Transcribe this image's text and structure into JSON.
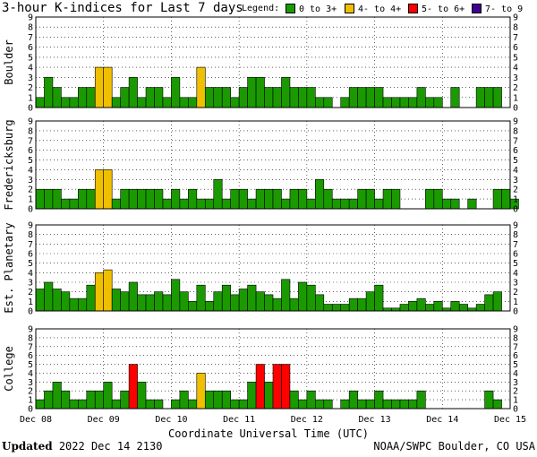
{
  "title": "3-hour K-indices for Last 7 days",
  "legend": {
    "label": "Legend:",
    "items": [
      {
        "label": "0 to 3+",
        "color": "#1a9a00"
      },
      {
        "label": "4- to 4+",
        "color": "#f0c000"
      },
      {
        "label": "5- to 6+",
        "color": "#ff0000"
      },
      {
        "label": "7- to 9",
        "color": "#400090"
      }
    ]
  },
  "footer": {
    "updated_label": "Updated",
    "updated_value": "2022 Dec 14 2130",
    "source": "NOAA/SWPC Boulder, CO USA"
  },
  "chart_data": {
    "type": "bar",
    "xlabel": "Coordinate Universal Time (UTC)",
    "x_ticks": [
      "Dec 08",
      "Dec 09",
      "Dec 10",
      "Dec 11",
      "Dec 12",
      "Dec 13",
      "Dec 14",
      "Dec 15"
    ],
    "y_ticks": [
      "0",
      "1",
      "2",
      "3",
      "4",
      "5",
      "6",
      "7",
      "8",
      "9"
    ],
    "ylim": [
      0,
      9
    ],
    "grid": true,
    "series": [
      {
        "name": "Boulder",
        "values": [
          1,
          3,
          2,
          1,
          1,
          2,
          2,
          4,
          4,
          1,
          2,
          3,
          1,
          2,
          2,
          1,
          3,
          1,
          1,
          4,
          2,
          2,
          2,
          1,
          2,
          3,
          3,
          2,
          2,
          3,
          2,
          2,
          2,
          1,
          1,
          0,
          1,
          2,
          2,
          2,
          2,
          1,
          1,
          1,
          1,
          2,
          1,
          1,
          0,
          2,
          0,
          0,
          2,
          2,
          2,
          0
        ]
      },
      {
        "name": "Fredericksburg",
        "values": [
          2,
          2,
          2,
          1,
          1,
          2,
          2,
          4,
          4,
          1,
          2,
          2,
          2,
          2,
          2,
          1,
          2,
          1,
          2,
          1,
          1,
          3,
          1,
          2,
          2,
          1,
          2,
          2,
          2,
          1,
          2,
          2,
          1,
          3,
          2,
          1,
          1,
          1,
          2,
          2,
          1,
          2,
          2,
          0,
          0,
          0,
          2,
          2,
          1,
          1,
          0,
          1,
          0,
          0,
          2,
          2,
          1,
          0
        ]
      },
      {
        "name": "Est. Planetary",
        "values": [
          2.3,
          3,
          2.3,
          2,
          1.3,
          1.3,
          2.7,
          4,
          4.3,
          2.3,
          2,
          3,
          1.7,
          1.7,
          2,
          1.7,
          3.3,
          2,
          1,
          2.7,
          1,
          2,
          2.7,
          1.7,
          2.3,
          2.7,
          2,
          1.7,
          1.3,
          3.3,
          1.3,
          3,
          2.7,
          1.7,
          0.7,
          0.7,
          0.7,
          1.3,
          1.3,
          2,
          2.7,
          0.3,
          0.3,
          0.7,
          1,
          1.3,
          0.7,
          1,
          0.3,
          1,
          0.7,
          0.3,
          0.7,
          1.7,
          2
        ]
      },
      {
        "name": "College",
        "values": [
          1,
          2,
          3,
          2,
          1,
          1,
          2,
          2,
          3,
          1,
          2,
          5,
          3,
          1,
          1,
          0,
          1,
          2,
          1,
          4,
          2,
          2,
          2,
          1,
          1,
          3,
          5,
          3,
          5,
          5,
          2,
          1,
          2,
          1,
          1,
          0,
          1,
          2,
          1,
          1,
          2,
          1,
          1,
          1,
          1,
          2,
          0,
          0,
          0,
          0,
          0,
          0,
          0,
          2,
          1,
          0
        ]
      }
    ],
    "color_scale": [
      {
        "min": 0,
        "max": 3.99,
        "color": "#1a9a00"
      },
      {
        "min": 4,
        "max": 4.99,
        "color": "#f0c000"
      },
      {
        "min": 5,
        "max": 6.99,
        "color": "#ff0000"
      },
      {
        "min": 7,
        "max": 9,
        "color": "#400090"
      }
    ]
  }
}
